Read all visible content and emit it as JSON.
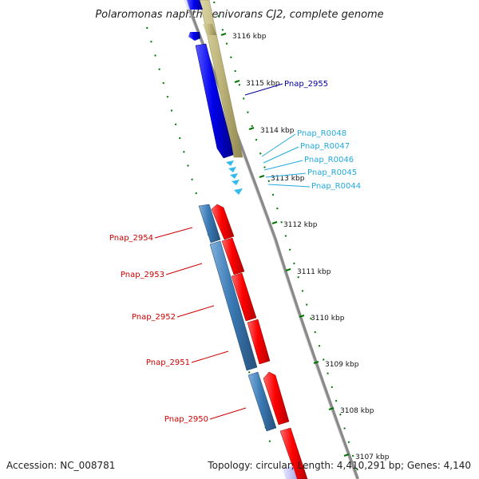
{
  "title": "Polaromonas naphthalenivorans CJ2, complete genome",
  "footer": {
    "accession": "Accession: NC_008781",
    "summary": "Topology: circular; Length: 4,410,291 bp; Genes: 4,140"
  },
  "colors": {
    "forward_cds": "#ff0000",
    "reverse_cds": "#3a7ab5",
    "highlight_cds": "#0000ee",
    "rna": "#33bbee",
    "olive_band": "#bdb47a",
    "backbone": "#8a8a8a",
    "ticks": "#007700",
    "forward_label": "#cc0000",
    "blue_label": "#000099",
    "rna_label": "#22aadd"
  },
  "ticks": [
    {
      "label": "3116 kbp"
    },
    {
      "label": "3115 kbp"
    },
    {
      "label": "3114 kbp"
    },
    {
      "label": "3113 kbp"
    },
    {
      "label": "3112 kbp"
    },
    {
      "label": "3111 kbp"
    },
    {
      "label": "3110 kbp"
    },
    {
      "label": "3109 kbp"
    },
    {
      "label": "3108 kbp"
    },
    {
      "label": "3107 kbp"
    }
  ],
  "gene_labels": [
    {
      "name": "Pnap_2955",
      "group": "blue"
    },
    {
      "name": "Pnap_R0048",
      "group": "rna"
    },
    {
      "name": "Pnap_R0047",
      "group": "rna"
    },
    {
      "name": "Pnap_R0046",
      "group": "rna"
    },
    {
      "name": "Pnap_R0045",
      "group": "rna"
    },
    {
      "name": "Pnap_R0044",
      "group": "rna"
    },
    {
      "name": "Pnap_2954",
      "group": "forward"
    },
    {
      "name": "Pnap_2953",
      "group": "forward"
    },
    {
      "name": "Pnap_2952",
      "group": "forward"
    },
    {
      "name": "Pnap_2951",
      "group": "forward"
    },
    {
      "name": "Pnap_2950",
      "group": "forward"
    }
  ]
}
